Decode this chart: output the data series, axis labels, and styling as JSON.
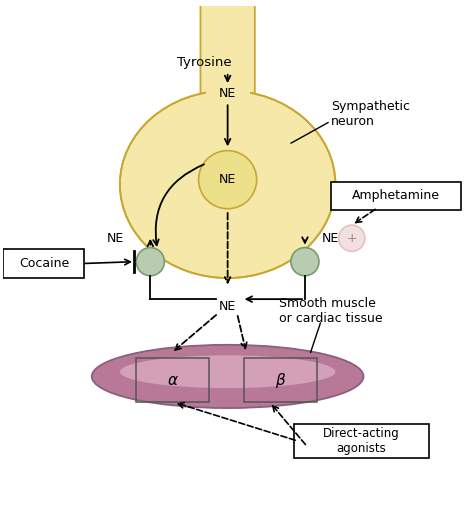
{
  "neuron_color": "#f5e8a8",
  "neuron_outline": "#c8a832",
  "vesicle_color": "#b8ccb0",
  "vesicle_outline": "#7a9a72",
  "muscle_color_light": "#d4a0b8",
  "muscle_color_dark": "#b87898",
  "muscle_outline": "#886080",
  "plus_circle_color": "#e8c0c0",
  "plus_text_color": "#b08080",
  "labels": {
    "tyrosine": "Tyrosine",
    "sympathetic_neuron": "Sympathetic\nneuron",
    "amphetamine": "Amphetamine",
    "cocaine": "Cocaine",
    "NE_center": "NE",
    "NE_left": "NE",
    "NE_right": "NE",
    "NE_synapse": "NE",
    "smooth_muscle": "Smooth muscle\nor cardiac tissue",
    "alpha": "α",
    "beta": "β",
    "direct_acting": "Direct-acting\nagonists",
    "plus": "+"
  },
  "figsize": [
    4.74,
    5.28
  ],
  "dpi": 100
}
